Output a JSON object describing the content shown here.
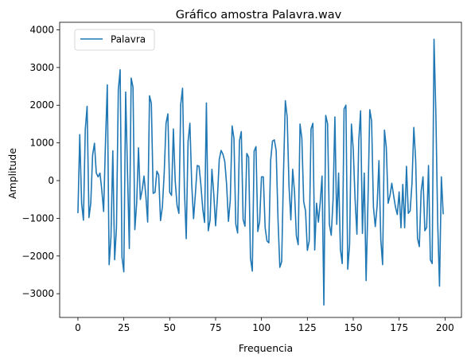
{
  "chart_data": {
    "type": "line",
    "title": "Gráfico amostra Palavra.wav",
    "xlabel": "Frequencia",
    "ylabel": "Amplitude",
    "xlim": [
      -9.95,
      208.95
    ],
    "ylim": [
      -3630,
      4200
    ],
    "xticks": [
      0,
      25,
      50,
      75,
      100,
      125,
      150,
      175,
      200
    ],
    "yticks": [
      -3000,
      -2000,
      -1000,
      0,
      1000,
      2000,
      3000,
      4000
    ],
    "grid": false,
    "legend_position": "upper-left",
    "line_color": "#1f77b4",
    "series": [
      {
        "name": "Palavra",
        "x": [
          0,
          1,
          2,
          3,
          4,
          5,
          6,
          7,
          8,
          9,
          10,
          11,
          12,
          13,
          14,
          15,
          16,
          17,
          18,
          19,
          20,
          21,
          22,
          23,
          24,
          25,
          26,
          27,
          28,
          29,
          30,
          31,
          32,
          33,
          34,
          35,
          36,
          37,
          38,
          39,
          40,
          41,
          42,
          43,
          44,
          45,
          46,
          47,
          48,
          49,
          50,
          51,
          52,
          53,
          54,
          55,
          56,
          57,
          58,
          59,
          60,
          61,
          62,
          63,
          64,
          65,
          66,
          67,
          68,
          69,
          70,
          71,
          72,
          73,
          74,
          75,
          76,
          77,
          78,
          79,
          80,
          81,
          82,
          83,
          84,
          85,
          86,
          87,
          88,
          89,
          90,
          91,
          92,
          93,
          94,
          95,
          96,
          97,
          98,
          99,
          100,
          101,
          102,
          103,
          104,
          105,
          106,
          107,
          108,
          109,
          110,
          111,
          112,
          113,
          114,
          115,
          116,
          117,
          118,
          119,
          120,
          121,
          122,
          123,
          124,
          125,
          126,
          127,
          128,
          129,
          130,
          131,
          132,
          133,
          134,
          135,
          136,
          137,
          138,
          139,
          140,
          141,
          142,
          143,
          144,
          145,
          146,
          147,
          148,
          149,
          150,
          151,
          152,
          153,
          154,
          155,
          156,
          157,
          158,
          159,
          160,
          161,
          162,
          163,
          164,
          165,
          166,
          167,
          168,
          169,
          170,
          171,
          172,
          173,
          174,
          175,
          176,
          177,
          178,
          179,
          180,
          181,
          182,
          183,
          184,
          185,
          186,
          187,
          188,
          189,
          190,
          191,
          192,
          193,
          194,
          195,
          196,
          197,
          198,
          199
        ],
        "y": [
          -850,
          1220,
          -600,
          -1050,
          1350,
          1970,
          -980,
          -600,
          680,
          990,
          200,
          100,
          200,
          -250,
          -820,
          1000,
          2540,
          -2230,
          -1500,
          790,
          -2100,
          -1250,
          2400,
          2940,
          -2030,
          -2420,
          2350,
          230,
          -1800,
          2720,
          2480,
          -1300,
          -600,
          870,
          -500,
          -250,
          120,
          -400,
          -1100,
          2250,
          2050,
          -340,
          -310,
          250,
          150,
          -1060,
          -700,
          200,
          1520,
          1770,
          -310,
          -390,
          1370,
          -10,
          -650,
          -870,
          2020,
          2450,
          -220,
          -1540,
          1030,
          1520,
          -100,
          -1010,
          -350,
          400,
          380,
          -120,
          -750,
          -1110,
          2060,
          -1330,
          -1050,
          300,
          -350,
          -1200,
          -450,
          560,
          800,
          700,
          510,
          -100,
          -1080,
          -520,
          1450,
          1120,
          -1150,
          -1390,
          1050,
          1300,
          -1030,
          -1210,
          720,
          620,
          -2050,
          -2400,
          780,
          900,
          -1350,
          -1080,
          100,
          100,
          -1250,
          -1600,
          -1650,
          540,
          1050,
          1080,
          800,
          -1020,
          -2300,
          -2150,
          200,
          2120,
          1690,
          -150,
          -1040,
          300,
          -300,
          -1460,
          -1700,
          1500,
          1120,
          -560,
          -800,
          -1850,
          -1600,
          1370,
          1520,
          -1840,
          -600,
          -1100,
          -580,
          120,
          -3300,
          1730,
          1510,
          -1160,
          -1450,
          -510,
          1690,
          -1160,
          200,
          -1820,
          -2200,
          1900,
          2000,
          -2350,
          -1700,
          1500,
          830,
          -500,
          -1420,
          1050,
          1850,
          -1400,
          200,
          -2650,
          -600,
          1880,
          1580,
          -700,
          -1220,
          -670,
          530,
          -1560,
          -2230,
          1340,
          880,
          -600,
          -400,
          -70,
          -400,
          -700,
          -900,
          -300,
          -1250,
          -100,
          -1250,
          380,
          -870,
          -800,
          -70,
          1410,
          550,
          -1530,
          -1750,
          -280,
          100,
          -1330,
          -1240,
          400,
          -2100,
          -2200,
          3750,
          1800,
          -1100,
          -2800,
          100,
          -880
        ]
      }
    ]
  }
}
